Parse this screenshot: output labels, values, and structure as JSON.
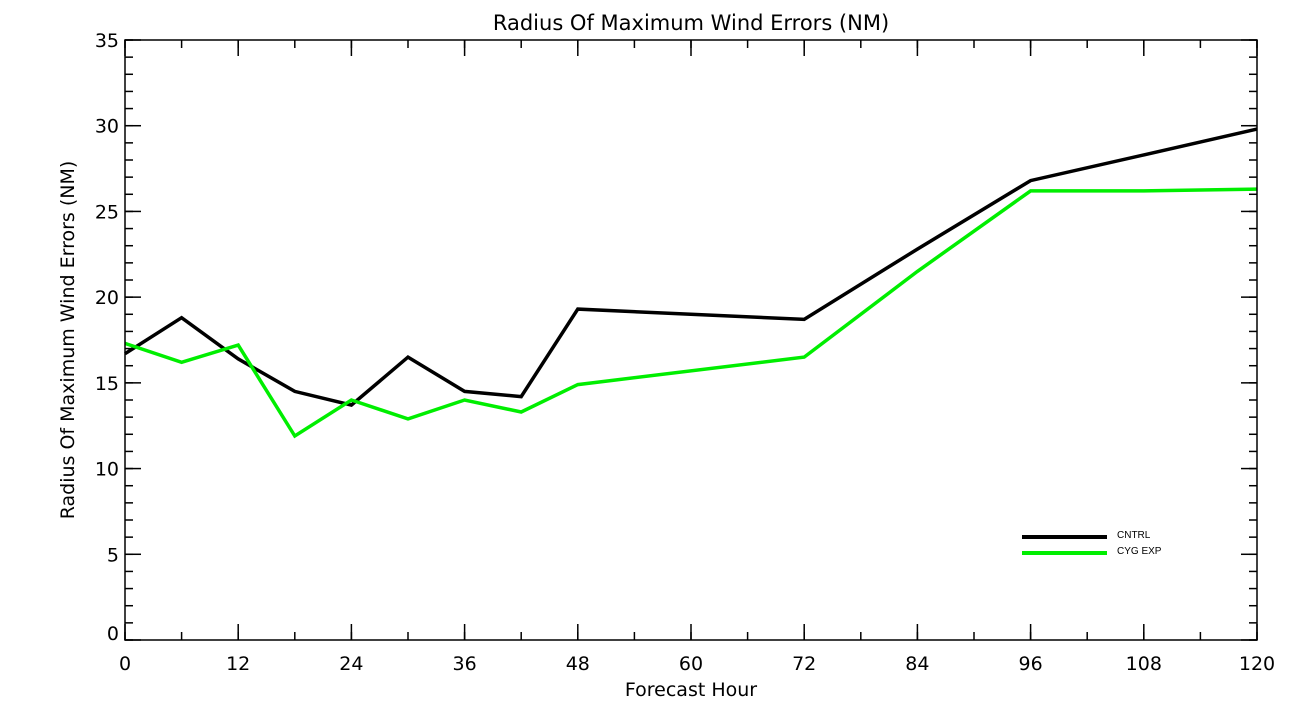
{
  "chart_data": {
    "type": "line",
    "title": "Radius Of Maximum Wind Errors (NM)",
    "xlabel": "Forecast Hour",
    "ylabel": "Radius Of Maximum Wind Errors (NM)",
    "xlim": [
      0,
      120
    ],
    "ylim": [
      0,
      35
    ],
    "x_major_ticks": [
      0,
      12,
      24,
      36,
      48,
      60,
      72,
      84,
      96,
      108,
      120
    ],
    "x_tick_labels": [
      "0",
      "12",
      "24",
      "36",
      "48",
      "60",
      "72",
      "84",
      "96",
      "108",
      "120"
    ],
    "x_minor_step": 6,
    "y_major_ticks": [
      0,
      5,
      10,
      15,
      20,
      25,
      30,
      35
    ],
    "y_tick_labels": [
      "0",
      "5",
      "10",
      "15",
      "20",
      "25",
      "30",
      "35"
    ],
    "y_minor_step": 1,
    "grid": false,
    "legend_position": "bottom-right",
    "series": [
      {
        "name": "CNTRL",
        "color": "#000000",
        "x": [
          0,
          6,
          12,
          18,
          24,
          30,
          36,
          42,
          48,
          72,
          84,
          96,
          108,
          120
        ],
        "y": [
          16.7,
          18.8,
          16.4,
          14.5,
          13.7,
          16.5,
          14.5,
          14.2,
          19.3,
          18.7,
          22.8,
          26.8,
          28.3,
          29.8
        ]
      },
      {
        "name": "CYG EXP",
        "color": "#00ee00",
        "x": [
          0,
          6,
          12,
          18,
          24,
          30,
          36,
          42,
          48,
          72,
          84,
          96,
          108,
          120
        ],
        "y": [
          17.3,
          16.2,
          17.2,
          11.9,
          14.0,
          12.9,
          14.0,
          13.3,
          14.9,
          16.5,
          21.5,
          26.2,
          26.2,
          26.3
        ]
      }
    ]
  }
}
